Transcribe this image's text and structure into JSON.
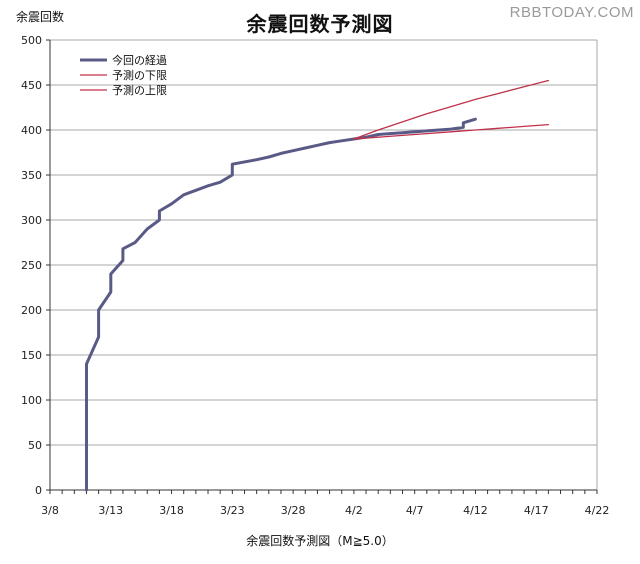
{
  "watermark": "RBBTODAY.COM",
  "chart_data": {
    "type": "line",
    "title": "余震回数予測図",
    "ylabel": "余震回数",
    "xlabel": "余震回数予測図（M≧5.0）",
    "x_unit": "date",
    "xticks": [
      "3/8",
      "3/13",
      "3/18",
      "3/23",
      "3/28",
      "4/2",
      "4/7",
      "4/12",
      "4/17",
      "4/22"
    ],
    "xticks_day_offset": [
      0,
      5,
      10,
      15,
      20,
      25,
      30,
      35,
      40,
      45
    ],
    "ylim": [
      0,
      500
    ],
    "yticks": [
      0,
      50,
      100,
      150,
      200,
      250,
      300,
      350,
      400,
      450,
      500
    ],
    "grid": "horizontal",
    "legend_position": "top-left",
    "series": [
      {
        "name": "今回の経過",
        "color": "#5a5a86",
        "points": [
          [
            "3/11",
            0
          ],
          [
            "3/11",
            60
          ],
          [
            "3/11",
            140
          ],
          [
            "3/12",
            170
          ],
          [
            "3/12",
            200
          ],
          [
            "3/13",
            220
          ],
          [
            "3/13",
            240
          ],
          [
            "3/14",
            255
          ],
          [
            "3/14",
            268
          ],
          [
            "3/15",
            275
          ],
          [
            "3/16",
            290
          ],
          [
            "3/17",
            300
          ],
          [
            "3/17",
            310
          ],
          [
            "3/18",
            318
          ],
          [
            "3/19",
            328
          ],
          [
            "3/20",
            333
          ],
          [
            "3/21",
            338
          ],
          [
            "3/22",
            342
          ],
          [
            "3/23",
            350
          ],
          [
            "3/23",
            362
          ],
          [
            "3/25",
            367
          ],
          [
            "3/26",
            370
          ],
          [
            "3/27",
            374
          ],
          [
            "3/28",
            377
          ],
          [
            "3/29",
            380
          ],
          [
            "3/30",
            383
          ],
          [
            "3/31",
            386
          ],
          [
            "4/1",
            388
          ],
          [
            "4/2",
            390
          ],
          [
            "4/3",
            392
          ],
          [
            "4/4",
            395
          ],
          [
            "4/6",
            397
          ],
          [
            "4/8",
            399
          ],
          [
            "4/10",
            401
          ],
          [
            "4/11",
            403
          ],
          [
            "4/11",
            408
          ],
          [
            "4/12",
            412
          ]
        ]
      },
      {
        "name": "予測の下限",
        "color": "#c0314a",
        "points": [
          [
            "4/2",
            390
          ],
          [
            "4/4",
            392
          ],
          [
            "4/6",
            394
          ],
          [
            "4/8",
            396
          ],
          [
            "4/10",
            398
          ],
          [
            "4/12",
            400
          ],
          [
            "4/14",
            402
          ],
          [
            "4/16",
            404
          ],
          [
            "4/18",
            406
          ]
        ]
      },
      {
        "name": "予測の上限",
        "color": "#c0314a",
        "points": [
          [
            "4/2",
            390
          ],
          [
            "4/4",
            400
          ],
          [
            "4/6",
            409
          ],
          [
            "4/8",
            418
          ],
          [
            "4/10",
            426
          ],
          [
            "4/12",
            434
          ],
          [
            "4/14",
            441
          ],
          [
            "4/16",
            448
          ],
          [
            "4/18",
            455
          ]
        ]
      }
    ]
  }
}
